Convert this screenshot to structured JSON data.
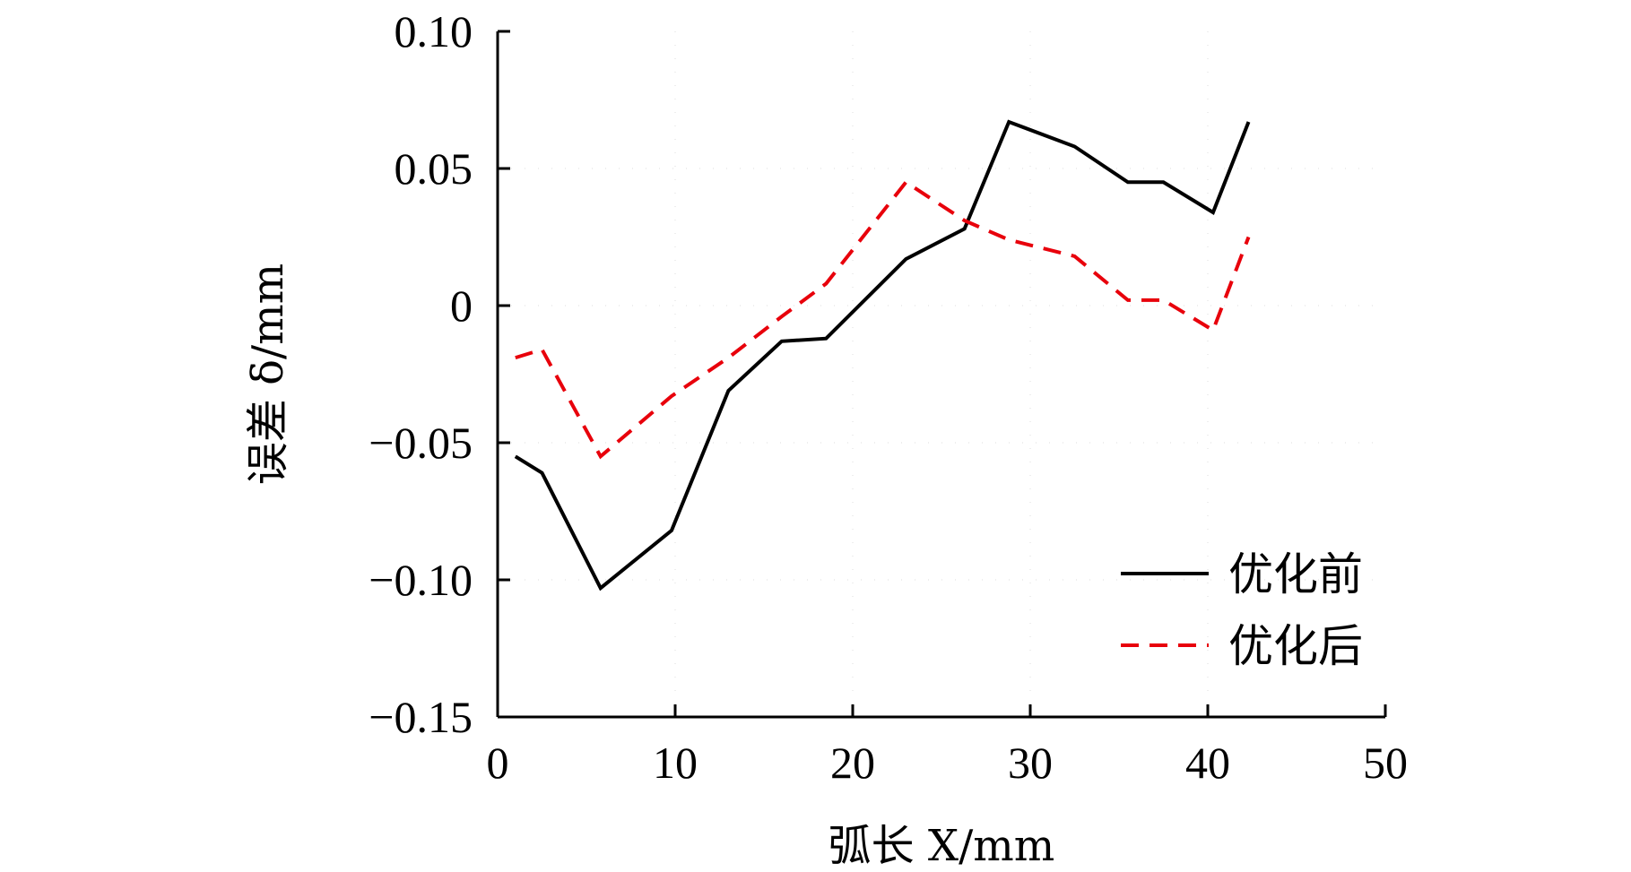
{
  "chart_data": {
    "type": "line",
    "xlabel": "弧长 X/mm",
    "ylabel": "误差 δ/mm",
    "xlim": [
      0,
      50
    ],
    "ylim": [
      -0.15,
      0.1
    ],
    "xticks": [
      0,
      10,
      20,
      30,
      40,
      50
    ],
    "xtick_labels": [
      "0",
      "10",
      "20",
      "30",
      "40",
      "50"
    ],
    "yticks": [
      -0.15,
      -0.1,
      -0.05,
      0,
      0.05,
      0.1
    ],
    "ytick_labels": [
      "−0.15",
      "−0.10",
      "−0.05",
      "0",
      "0.05",
      "0.10"
    ],
    "grid": true,
    "legend_position": "bottom-right",
    "series": [
      {
        "name": "优化前",
        "color": "#000000",
        "dash": "solid",
        "x": [
          1.0,
          2.5,
          5.8,
          9.8,
          13.0,
          16.0,
          18.5,
          23.0,
          26.3,
          28.8,
          32.5,
          35.5,
          37.5,
          40.3,
          42.3
        ],
        "y": [
          -0.055,
          -0.061,
          -0.103,
          -0.082,
          -0.031,
          -0.013,
          -0.012,
          0.017,
          0.028,
          0.067,
          0.058,
          0.045,
          0.045,
          0.034,
          0.067
        ]
      },
      {
        "name": "优化后",
        "color": "#e8000b",
        "dash": "dashed",
        "x": [
          1.0,
          2.5,
          5.8,
          9.8,
          13.0,
          16.0,
          18.5,
          23.0,
          26.3,
          28.8,
          32.5,
          35.5,
          37.5,
          40.3,
          42.3
        ],
        "y": [
          -0.019,
          -0.016,
          -0.055,
          -0.033,
          -0.019,
          -0.004,
          0.008,
          0.045,
          0.031,
          0.024,
          0.018,
          0.002,
          0.002,
          -0.009,
          0.025
        ]
      }
    ]
  }
}
